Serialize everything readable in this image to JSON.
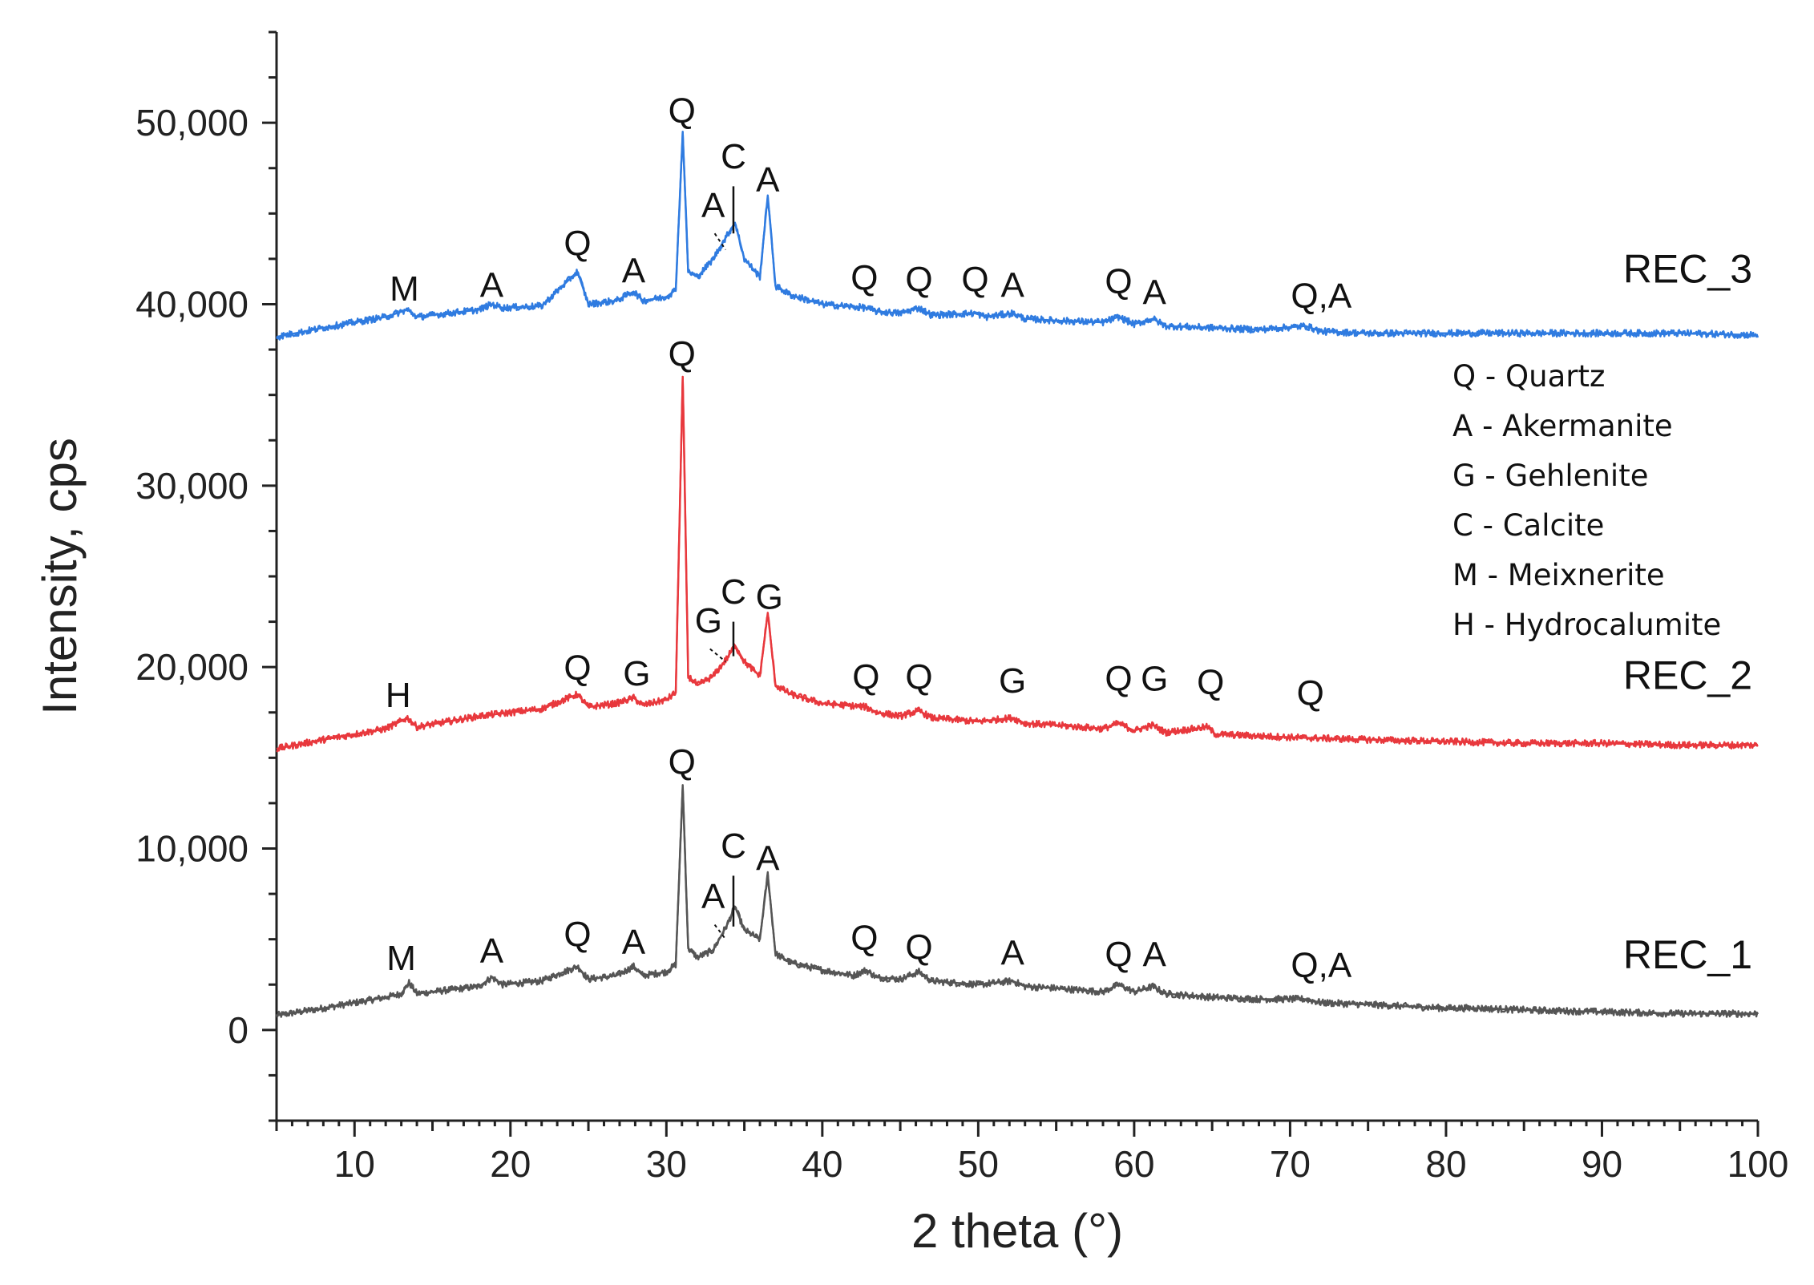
{
  "chart_data": {
    "type": "line",
    "title": "",
    "xlabel": "2 theta (°)",
    "ylabel": "Intensity, cps",
    "xlim": [
      5,
      100
    ],
    "ylim": [
      -5000,
      55000
    ],
    "x_ticks": [
      10,
      20,
      30,
      40,
      50,
      60,
      70,
      80,
      90,
      100
    ],
    "y_ticks": [
      0,
      10000,
      20000,
      30000,
      40000,
      50000
    ],
    "y_tick_labels": [
      "0",
      "10,000",
      "20,000",
      "30,000",
      "40,000",
      "50,000"
    ],
    "series": [
      {
        "name": "REC_1",
        "color": "#555555",
        "points": [
          [
            5,
            800
          ],
          [
            8,
            1200
          ],
          [
            10,
            1500
          ],
          [
            12,
            1800
          ],
          [
            13,
            2000
          ],
          [
            13.5,
            2600
          ],
          [
            14,
            2000
          ],
          [
            16,
            2200
          ],
          [
            18,
            2400
          ],
          [
            18.8,
            2900
          ],
          [
            19.5,
            2500
          ],
          [
            22,
            2700
          ],
          [
            24.3,
            3500
          ],
          [
            25,
            2800
          ],
          [
            26.8,
            3000
          ],
          [
            27.9,
            3500
          ],
          [
            28.5,
            3000
          ],
          [
            30,
            3200
          ],
          [
            30.6,
            3600
          ],
          [
            31.05,
            13500
          ],
          [
            31.4,
            4500
          ],
          [
            32,
            4000
          ],
          [
            33,
            4400
          ],
          [
            33.9,
            5800
          ],
          [
            34.4,
            6800
          ],
          [
            35,
            5500
          ],
          [
            36,
            5000
          ],
          [
            36.5,
            8600
          ],
          [
            37,
            4200
          ],
          [
            38,
            3700
          ],
          [
            40,
            3300
          ],
          [
            42,
            3000
          ],
          [
            42.8,
            3300
          ],
          [
            43.5,
            2900
          ],
          [
            45,
            2800
          ],
          [
            46.2,
            3200
          ],
          [
            47,
            2700
          ],
          [
            50,
            2500
          ],
          [
            52.2,
            2700
          ],
          [
            53,
            2400
          ],
          [
            55,
            2300
          ],
          [
            58,
            2100
          ],
          [
            59,
            2500
          ],
          [
            60,
            2100
          ],
          [
            61.2,
            2400
          ],
          [
            62,
            2000
          ],
          [
            65,
            1800
          ],
          [
            68,
            1700
          ],
          [
            71,
            1700
          ],
          [
            72,
            1500
          ],
          [
            75,
            1400
          ],
          [
            80,
            1200
          ],
          [
            82,
            1200
          ],
          [
            85,
            1100
          ],
          [
            90,
            1000
          ],
          [
            95,
            900
          ],
          [
            100,
            900
          ]
        ]
      },
      {
        "name": "REC_2",
        "color": "#e8383d",
        "points": [
          [
            5,
            15500
          ],
          [
            8,
            16000
          ],
          [
            10,
            16300
          ],
          [
            12,
            16600
          ],
          [
            13.4,
            17200
          ],
          [
            14,
            16700
          ],
          [
            16,
            17000
          ],
          [
            18,
            17300
          ],
          [
            20,
            17500
          ],
          [
            22,
            17700
          ],
          [
            24.3,
            18500
          ],
          [
            25,
            17800
          ],
          [
            26.8,
            18000
          ],
          [
            27.9,
            18300
          ],
          [
            28.5,
            17900
          ],
          [
            30,
            18200
          ],
          [
            30.6,
            18600
          ],
          [
            31.05,
            36000
          ],
          [
            31.4,
            19500
          ],
          [
            32,
            19000
          ],
          [
            33,
            19500
          ],
          [
            33.9,
            20500
          ],
          [
            34.4,
            21200
          ],
          [
            35,
            20300
          ],
          [
            36,
            19500
          ],
          [
            36.5,
            23000
          ],
          [
            37,
            19000
          ],
          [
            38,
            18500
          ],
          [
            40,
            18000
          ],
          [
            42.8,
            17800
          ],
          [
            43.5,
            17500
          ],
          [
            45,
            17300
          ],
          [
            46.2,
            17600
          ],
          [
            47,
            17200
          ],
          [
            50,
            17000
          ],
          [
            52.2,
            17200
          ],
          [
            53,
            16900
          ],
          [
            55,
            16800
          ],
          [
            58,
            16600
          ],
          [
            59,
            16900
          ],
          [
            60,
            16500
          ],
          [
            61.2,
            16800
          ],
          [
            62,
            16400
          ],
          [
            64.7,
            16700
          ],
          [
            65.2,
            16300
          ],
          [
            68,
            16200
          ],
          [
            71,
            16100
          ],
          [
            75,
            16000
          ],
          [
            80,
            15900
          ],
          [
            85,
            15800
          ],
          [
            90,
            15800
          ],
          [
            95,
            15700
          ],
          [
            100,
            15700
          ]
        ]
      },
      {
        "name": "REC_3",
        "color": "#2f7be0",
        "points": [
          [
            5,
            38200
          ],
          [
            8,
            38700
          ],
          [
            10,
            39000
          ],
          [
            12,
            39300
          ],
          [
            13.4,
            39700
          ],
          [
            14,
            39300
          ],
          [
            16,
            39500
          ],
          [
            18,
            39700
          ],
          [
            18.8,
            40000
          ],
          [
            19.5,
            39800
          ],
          [
            22,
            39900
          ],
          [
            24.3,
            41800
          ],
          [
            25,
            40000
          ],
          [
            26.8,
            40200
          ],
          [
            27.9,
            40700
          ],
          [
            28.5,
            40200
          ],
          [
            30,
            40400
          ],
          [
            30.6,
            40800
          ],
          [
            31.05,
            49500
          ],
          [
            31.4,
            41800
          ],
          [
            32,
            41500
          ],
          [
            33,
            42500
          ],
          [
            33.9,
            43800
          ],
          [
            34.4,
            44500
          ],
          [
            35,
            42500
          ],
          [
            36,
            41500
          ],
          [
            36.5,
            46000
          ],
          [
            37,
            41000
          ],
          [
            38,
            40500
          ],
          [
            40,
            40000
          ],
          [
            42.8,
            39800
          ],
          [
            43.5,
            39600
          ],
          [
            45,
            39500
          ],
          [
            46.2,
            39800
          ],
          [
            47,
            39400
          ],
          [
            49.8,
            39500
          ],
          [
            50.5,
            39300
          ],
          [
            52.2,
            39500
          ],
          [
            53,
            39200
          ],
          [
            55,
            39100
          ],
          [
            58,
            39000
          ],
          [
            59,
            39300
          ],
          [
            60,
            38900
          ],
          [
            61.2,
            39200
          ],
          [
            62,
            38800
          ],
          [
            65,
            38700
          ],
          [
            68,
            38600
          ],
          [
            71,
            38800
          ],
          [
            72,
            38500
          ],
          [
            75,
            38400
          ],
          [
            80,
            38400
          ],
          [
            85,
            38400
          ],
          [
            90,
            38400
          ],
          [
            95,
            38400
          ],
          [
            100,
            38300
          ]
        ]
      }
    ],
    "peak_annotations": [
      {
        "series": "REC_1",
        "label": "M",
        "x": 13,
        "y": 3300
      },
      {
        "series": "REC_1",
        "label": "A",
        "x": 18.8,
        "y": 3700
      },
      {
        "series": "REC_1",
        "label": "Q",
        "x": 24.3,
        "y": 4600
      },
      {
        "series": "REC_1",
        "label": "A",
        "x": 27.9,
        "y": 4200
      },
      {
        "series": "REC_1",
        "label": "Q",
        "x": 31,
        "y": 14100
      },
      {
        "series": "REC_1",
        "label": "A",
        "x": 33,
        "y": 6700
      },
      {
        "series": "REC_1",
        "label": "C",
        "x": 34.3,
        "y": 9500
      },
      {
        "series": "REC_1",
        "label": "A",
        "x": 36.5,
        "y": 8800
      },
      {
        "series": "REC_1",
        "label": "Q",
        "x": 42.7,
        "y": 4400
      },
      {
        "series": "REC_1",
        "label": "Q",
        "x": 46.2,
        "y": 3900
      },
      {
        "series": "REC_1",
        "label": "A",
        "x": 52.2,
        "y": 3600
      },
      {
        "series": "REC_1",
        "label": "Q",
        "x": 59,
        "y": 3500
      },
      {
        "series": "REC_1",
        "label": "A",
        "x": 61.3,
        "y": 3500
      },
      {
        "series": "REC_1",
        "label": "Q,A",
        "x": 72,
        "y": 2900
      },
      {
        "series": "REC_2",
        "label": "H",
        "x": 12.8,
        "y": 17800
      },
      {
        "series": "REC_2",
        "label": "Q",
        "x": 24.3,
        "y": 19300
      },
      {
        "series": "REC_2",
        "label": "G",
        "x": 28.1,
        "y": 19000
      },
      {
        "series": "REC_2",
        "label": "Q",
        "x": 31,
        "y": 36600
      },
      {
        "series": "REC_2",
        "label": "G",
        "x": 32.7,
        "y": 21900
      },
      {
        "series": "REC_2",
        "label": "C",
        "x": 34.3,
        "y": 23500
      },
      {
        "series": "REC_2",
        "label": "G",
        "x": 36.6,
        "y": 23200
      },
      {
        "series": "REC_2",
        "label": "Q",
        "x": 42.8,
        "y": 18800
      },
      {
        "series": "REC_2",
        "label": "Q",
        "x": 46.2,
        "y": 18800
      },
      {
        "series": "REC_2",
        "label": "G",
        "x": 52.2,
        "y": 18600
      },
      {
        "series": "REC_2",
        "label": "Q",
        "x": 59,
        "y": 18700
      },
      {
        "series": "REC_2",
        "label": "G",
        "x": 61.3,
        "y": 18700
      },
      {
        "series": "REC_2",
        "label": "Q",
        "x": 64.9,
        "y": 18500
      },
      {
        "series": "REC_2",
        "label": "Q",
        "x": 71.3,
        "y": 17900
      },
      {
        "series": "REC_3",
        "label": "M",
        "x": 13.2,
        "y": 40200
      },
      {
        "series": "REC_3",
        "label": "A",
        "x": 18.8,
        "y": 40400
      },
      {
        "series": "REC_3",
        "label": "Q",
        "x": 24.3,
        "y": 42700
      },
      {
        "series": "REC_3",
        "label": "A",
        "x": 27.9,
        "y": 41200
      },
      {
        "series": "REC_3",
        "label": "Q",
        "x": 31,
        "y": 50000
      },
      {
        "series": "REC_3",
        "label": "A",
        "x": 33,
        "y": 44800
      },
      {
        "series": "REC_3",
        "label": "C",
        "x": 34.3,
        "y": 47500
      },
      {
        "series": "REC_3",
        "label": "A",
        "x": 36.5,
        "y": 46200
      },
      {
        "series": "REC_3",
        "label": "Q",
        "x": 42.7,
        "y": 40800
      },
      {
        "series": "REC_3",
        "label": "Q",
        "x": 46.2,
        "y": 40700
      },
      {
        "series": "REC_3",
        "label": "Q",
        "x": 49.8,
        "y": 40700
      },
      {
        "series": "REC_3",
        "label": "A",
        "x": 52.2,
        "y": 40400
      },
      {
        "series": "REC_3",
        "label": "Q",
        "x": 59,
        "y": 40600
      },
      {
        "series": "REC_3",
        "label": "A",
        "x": 61.3,
        "y": 40000
      },
      {
        "series": "REC_3",
        "label": "Q,A",
        "x": 72,
        "y": 39800
      }
    ],
    "series_labels": [
      {
        "text": "REC_3",
        "x": 95.5,
        "y": 41200
      },
      {
        "text": "REC_2",
        "x": 95.5,
        "y": 18800
      },
      {
        "text": "REC_1",
        "x": 95.5,
        "y": 3400
      }
    ],
    "legend": {
      "placement": "right",
      "entries": [
        "Q - Quartz",
        "A - Akermanite",
        "G - Gehlenite",
        "C - Calcite",
        "M - Meixnerite",
        "H - Hydrocalumite"
      ]
    }
  }
}
